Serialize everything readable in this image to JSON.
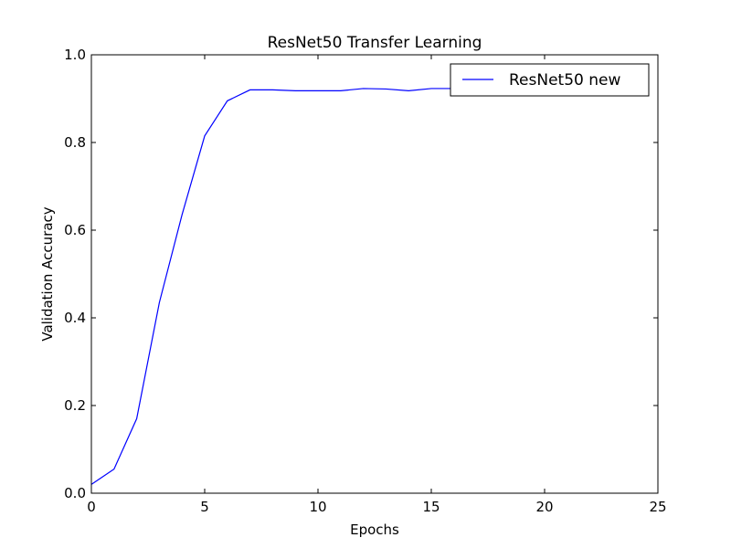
{
  "chart_data": {
    "type": "line",
    "title": "ResNet50 Transfer Learning",
    "xlabel": "Epochs",
    "ylabel": "Validation Accuracy",
    "xlim": [
      0,
      25
    ],
    "ylim": [
      0.0,
      1.0
    ],
    "xticks": [
      0,
      5,
      10,
      15,
      20,
      25
    ],
    "xtick_labels": [
      "0",
      "5",
      "10",
      "15",
      "20",
      "25"
    ],
    "yticks": [
      0.0,
      0.2,
      0.4,
      0.6,
      0.8,
      1.0
    ],
    "ytick_labels": [
      "0.0",
      "0.2",
      "0.4",
      "0.6",
      "0.8",
      "1.0"
    ],
    "grid": false,
    "legend": {
      "position": "top-right",
      "entries": [
        "ResNet50 new"
      ]
    },
    "series": [
      {
        "name": "ResNet50 new",
        "color": "#0000ff",
        "x": [
          0,
          1,
          2,
          3,
          4,
          5,
          6,
          7,
          8,
          9,
          10,
          11,
          12,
          13,
          14,
          15,
          16,
          17
        ],
        "y": [
          0.02,
          0.055,
          0.17,
          0.435,
          0.635,
          0.815,
          0.895,
          0.92,
          0.92,
          0.918,
          0.918,
          0.918,
          0.923,
          0.922,
          0.918,
          0.923,
          0.923,
          0.923
        ]
      }
    ]
  }
}
